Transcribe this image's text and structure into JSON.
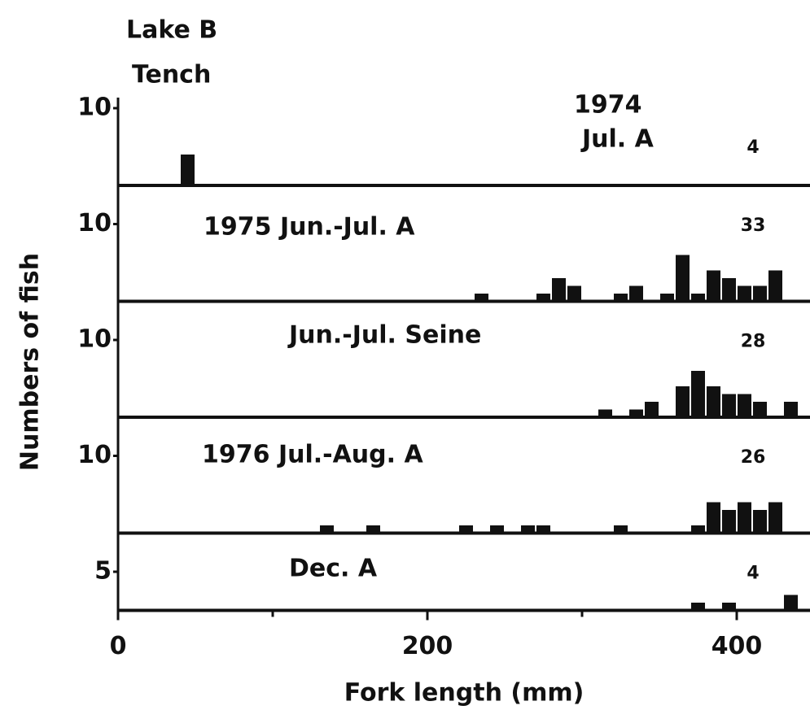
{
  "title": "Lake B",
  "subtitle": "Tench",
  "ylabel": "Numbers of fish",
  "xlabel": "Fork length (mm)",
  "chart_data": [
    {
      "type": "histogram",
      "title": "1974",
      "subtitle": "Jul. A",
      "annotation": 4,
      "bins": [
        40,
        50
      ],
      "values": [
        4
      ],
      "color": "#111111",
      "xlim": [
        0,
        450
      ],
      "ylim": [
        0,
        12
      ],
      "yticks": [
        10
      ]
    },
    {
      "type": "histogram",
      "title": "1975 Jun.-Jul. A",
      "annotation": 33,
      "bins": [
        230,
        240,
        250,
        260,
        270,
        280,
        290,
        300,
        310,
        320,
        330,
        340,
        350,
        360,
        370,
        380,
        390,
        400,
        410,
        420,
        430
      ],
      "values": [
        1,
        0,
        0,
        0,
        1,
        3,
        2,
        0,
        0,
        1,
        2,
        0,
        1,
        6,
        1,
        4,
        3,
        2,
        2,
        4
      ],
      "color": "#111111",
      "xlim": [
        0,
        450
      ],
      "ylim": [
        0,
        15
      ],
      "yticks": [
        10
      ]
    },
    {
      "type": "histogram",
      "title": "Jun.-Jul. Seine",
      "annotation": 28,
      "bins": [
        310,
        320,
        330,
        340,
        350,
        360,
        370,
        380,
        390,
        400,
        410,
        420,
        430,
        440
      ],
      "values": [
        1,
        0,
        1,
        2,
        0,
        4,
        6,
        4,
        3,
        3,
        2,
        0,
        2
      ],
      "color": "#111111",
      "xlim": [
        0,
        450
      ],
      "ylim": [
        0,
        15
      ],
      "yticks": [
        10
      ]
    },
    {
      "type": "histogram",
      "title": "1976 Jul.-Aug. A",
      "annotation": 26,
      "bins": [
        130,
        140,
        150,
        160,
        170,
        180,
        190,
        200,
        210,
        220,
        230,
        240,
        250,
        260,
        270,
        280,
        290,
        300,
        310,
        320,
        330,
        340,
        350,
        360,
        370,
        380,
        390,
        400,
        410,
        420,
        430
      ],
      "values": [
        1,
        0,
        0,
        1,
        0,
        0,
        0,
        0,
        0,
        1,
        0,
        1,
        0,
        1,
        1,
        0,
        0,
        0,
        0,
        1,
        0,
        0,
        0,
        0,
        1,
        4,
        3,
        4,
        3,
        4
      ],
      "color": "#111111",
      "xlim": [
        0,
        450
      ],
      "ylim": [
        0,
        15
      ],
      "yticks": [
        10
      ]
    },
    {
      "type": "histogram",
      "title": "Dec. A",
      "annotation": 4,
      "bins": [
        370,
        380,
        390,
        400,
        410,
        420,
        430,
        440
      ],
      "values": [
        1,
        0,
        1,
        0,
        0,
        0,
        2
      ],
      "color": "#111111",
      "xlim": [
        0,
        450
      ],
      "ylim": [
        0,
        10
      ],
      "yticks": [
        5
      ],
      "xticks": [
        0,
        200,
        400
      ],
      "xminor_ticks": [
        100,
        300
      ]
    }
  ]
}
